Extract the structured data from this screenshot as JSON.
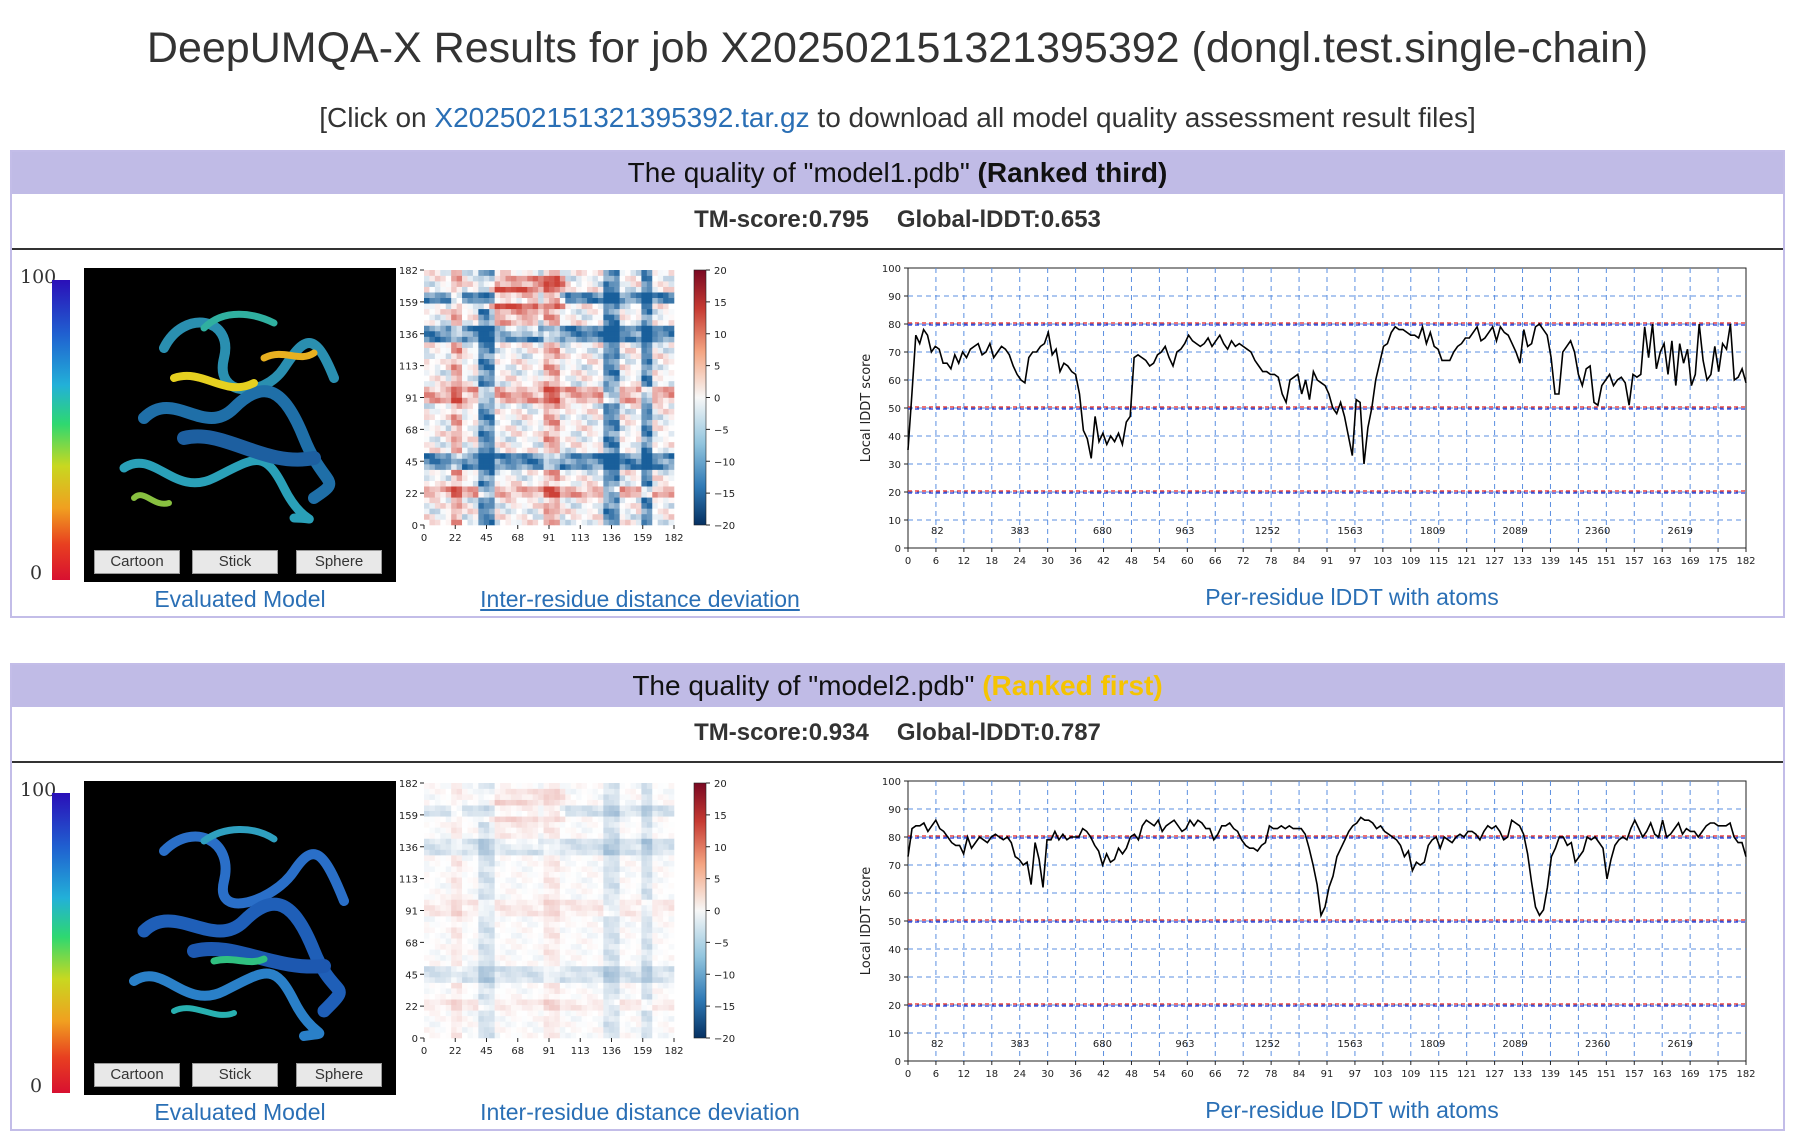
{
  "page": {
    "title": "DeepUMQA-X Results for job X202502151321395392 (dongl.test.single-chain)",
    "download_prefix": "[Click on ",
    "download_link": "X202502151321395392.tar.gz",
    "download_suffix": " to download all model quality assessment result files]"
  },
  "panels": [
    {
      "header_prefix": "The quality of \"model1.pdb\" ",
      "rank": "(Ranked third)",
      "rank_color": "#111111",
      "tm_label": "TM-score:0.795",
      "lddt_label": "Global-lDDT:0.653",
      "scale_max": "100",
      "scale_min": "0",
      "buttons": [
        "Cartoon",
        "Stick",
        "Sphere"
      ],
      "model_caption": "Evaluated Model",
      "heatmap_caption": "Inter-residue distance deviation",
      "lddt_caption": "Per-residue lDDT with atoms",
      "heatmap_intensity": 1.0
    },
    {
      "header_prefix": "The quality of \"model2.pdb\" ",
      "rank": "(Ranked first)",
      "rank_color": "#f5c400",
      "tm_label": "TM-score:0.934",
      "lddt_label": "Global-lDDT:0.787",
      "scale_max": "100",
      "scale_min": "0",
      "buttons": [
        "Cartoon",
        "Stick",
        "Sphere"
      ],
      "model_caption": "Evaluated Model",
      "heatmap_caption": "Inter-residue distance deviation",
      "lddt_caption": "Per-residue lDDT with atoms",
      "heatmap_intensity": 0.25
    }
  ],
  "chart_data": [
    {
      "type": "heatmap",
      "title": "",
      "x_ticks": [
        "0",
        "22",
        "45",
        "68",
        "91",
        "113",
        "136",
        "159",
        "182"
      ],
      "y_ticks": [
        "0",
        "22",
        "45",
        "68",
        "91",
        "113",
        "136",
        "159",
        "182"
      ],
      "colorbar_ticks": [
        "20",
        "15",
        "10",
        "5",
        "0",
        "−5",
        "−10",
        "−15",
        "−20"
      ],
      "range": [
        0,
        182
      ],
      "colorbar_range": [
        -20,
        20
      ]
    },
    {
      "type": "line",
      "ylabel": "Local lDDT score",
      "ylim": [
        0,
        100
      ],
      "y_ticks": [
        "0",
        "10",
        "20",
        "30",
        "40",
        "50",
        "60",
        "70",
        "80",
        "90",
        "100"
      ],
      "x_ticks": [
        "0",
        "6",
        "12",
        "18",
        "24",
        "30",
        "36",
        "42",
        "48",
        "54",
        "60",
        "66",
        "72",
        "78",
        "84",
        "91",
        "97",
        "103",
        "109",
        "115",
        "121",
        "127",
        "133",
        "139",
        "145",
        "151",
        "157",
        "163",
        "169",
        "175",
        "182"
      ],
      "atom_labels": [
        "82",
        "383",
        "680",
        "963",
        "1252",
        "1563",
        "1809",
        "2089",
        "2360",
        "2619"
      ],
      "threshold_lines": [
        80,
        50,
        20
      ],
      "series": [
        {
          "values": [
            35,
            55,
            76,
            73,
            78,
            76,
            70,
            72,
            71,
            66,
            66,
            64,
            69,
            66,
            70,
            68,
            71,
            72,
            73,
            69,
            70,
            73,
            68,
            70,
            72,
            71,
            69,
            65,
            62,
            60,
            59,
            68,
            70,
            70,
            72,
            73,
            77,
            69,
            71,
            63,
            66,
            65,
            63,
            62,
            55,
            42,
            39,
            32,
            47,
            38,
            41,
            37,
            40,
            38,
            41,
            37,
            45,
            47,
            68,
            69,
            68,
            67,
            65,
            66,
            69,
            70,
            72,
            68,
            65,
            70,
            71,
            73,
            76,
            74,
            73,
            72,
            73,
            75,
            72,
            74,
            76,
            73,
            71,
            74,
            72,
            73,
            72,
            71,
            70,
            67,
            65,
            63,
            63,
            62,
            62,
            61,
            55,
            52,
            60,
            61,
            62,
            55,
            60,
            53,
            63,
            60,
            59,
            58,
            55,
            50,
            48,
            52,
            47,
            40,
            33,
            53,
            52,
            30,
            43,
            50,
            60,
            66,
            72,
            73,
            77,
            79,
            78,
            78,
            77,
            76,
            76,
            75,
            79,
            73,
            77,
            72,
            71,
            67,
            67,
            67,
            70,
            72,
            73,
            75,
            75,
            77,
            79,
            74,
            75,
            77,
            79,
            74,
            79,
            77,
            76,
            73,
            70,
            66,
            78,
            72,
            73,
            79,
            80,
            78,
            76,
            68,
            55,
            55,
            70,
            72,
            74,
            70,
            62,
            58,
            64,
            65,
            52,
            51,
            58,
            60,
            62,
            58,
            60,
            61,
            59,
            51,
            62,
            61,
            62,
            79,
            68,
            80,
            64,
            70,
            73,
            62,
            74,
            58,
            73,
            66,
            71,
            58,
            62,
            80,
            67,
            60,
            62,
            72,
            63,
            73,
            71,
            80,
            60,
            61,
            64,
            59
          ],
          "color": "#000000"
        },
        {
          "values": [
            73,
            83,
            84,
            84,
            85,
            82,
            84,
            86,
            83,
            82,
            80,
            78,
            77,
            77,
            74,
            80,
            76,
            78,
            80,
            79,
            78,
            80,
            81,
            80,
            79,
            80,
            78,
            73,
            72,
            70,
            71,
            63,
            78,
            72,
            62,
            79,
            79,
            82,
            79,
            81,
            79,
            80,
            80,
            80,
            83,
            82,
            80,
            77,
            75,
            70,
            74,
            71,
            72,
            76,
            74,
            76,
            80,
            81,
            79,
            84,
            86,
            85,
            84,
            86,
            82,
            84,
            85,
            86,
            84,
            82,
            83,
            86,
            84,
            86,
            85,
            83,
            83,
            79,
            81,
            84,
            84,
            85,
            83,
            82,
            79,
            77,
            76,
            76,
            75,
            77,
            78,
            84,
            83,
            83,
            84,
            83,
            84,
            83,
            83,
            83,
            81,
            76,
            70,
            63,
            52,
            55,
            62,
            66,
            73,
            76,
            79,
            82,
            84,
            85,
            87,
            86,
            86,
            85,
            83,
            84,
            82,
            81,
            80,
            79,
            77,
            73,
            75,
            68,
            71,
            70,
            71,
            77,
            79,
            80,
            76,
            80,
            79,
            78,
            80,
            81,
            80,
            82,
            82,
            81,
            79,
            82,
            84,
            83,
            84,
            82,
            79,
            80,
            86,
            85,
            84,
            81,
            74,
            64,
            55,
            52,
            54,
            62,
            73,
            76,
            80,
            80,
            77,
            78,
            71,
            73,
            75,
            80,
            79,
            80,
            78,
            76,
            65,
            72,
            77,
            79,
            80,
            79,
            83,
            86,
            83,
            80,
            82,
            85,
            81,
            80,
            86,
            80,
            81,
            83,
            85,
            81,
            83,
            82,
            82,
            80,
            82,
            84,
            85,
            85,
            84,
            84,
            84,
            85,
            80,
            78,
            78,
            73
          ],
          "color": "#000000"
        }
      ]
    }
  ]
}
